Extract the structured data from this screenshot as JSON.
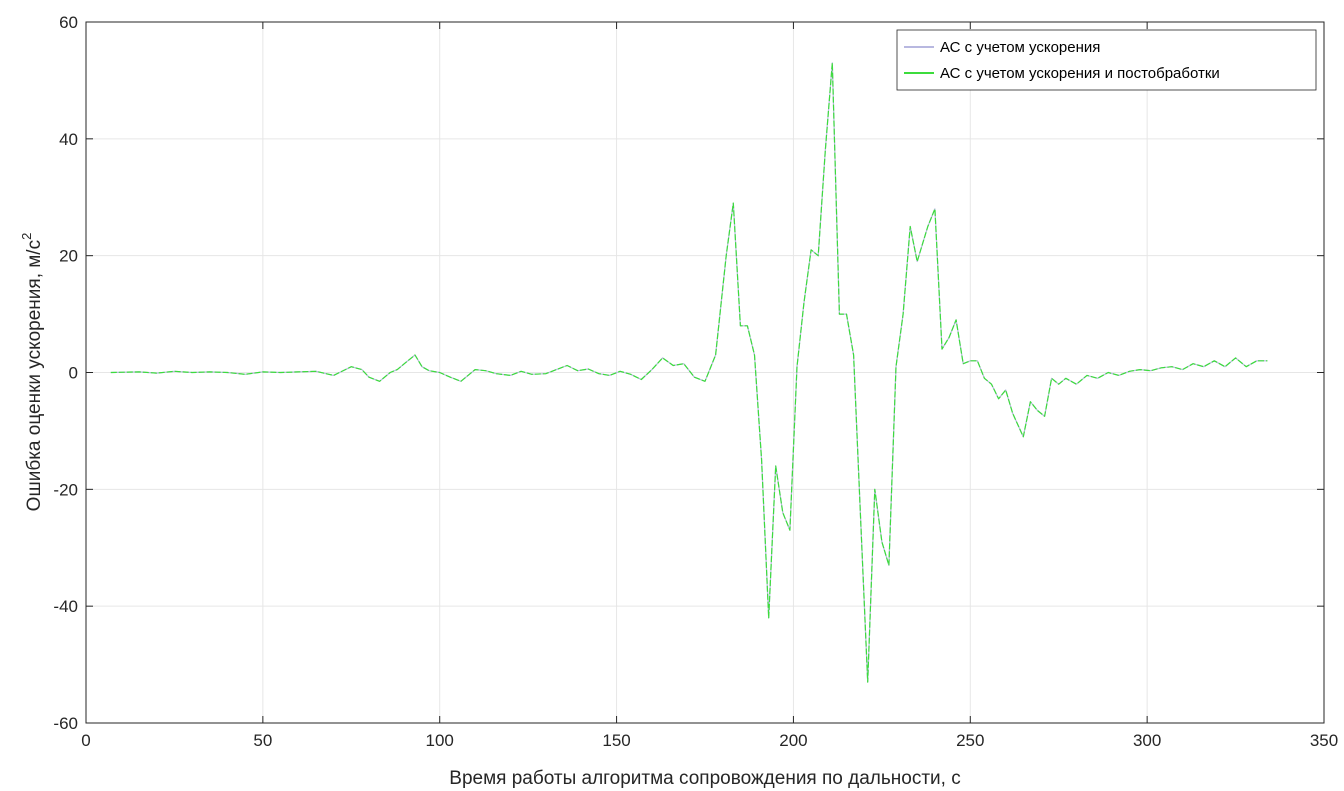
{
  "chart_data": {
    "type": "line",
    "title": "",
    "xlabel": "Время работы алгоритма сопровождения по дальности, с",
    "ylabel": "Ошибка оценки ускорения, м/с",
    "ylabel_sup": "2",
    "xlim": [
      0,
      350
    ],
    "ylim": [
      -60,
      60
    ],
    "xticks": [
      0,
      50,
      100,
      150,
      200,
      250,
      300,
      350
    ],
    "yticks": [
      -60,
      -40,
      -20,
      0,
      20,
      40,
      60
    ],
    "xtick_labels": [
      "0",
      "50",
      "100",
      "150",
      "200",
      "250",
      "300",
      "350"
    ],
    "ytick_labels": [
      "-60",
      "-40",
      "-20",
      "0",
      "20",
      "40",
      "60"
    ],
    "grid": true,
    "legend_position": "top-right",
    "colors": {
      "series1": "#b8b8e0",
      "series2": "#3cdc3c",
      "grid": "#e6e6e6",
      "axis": "#262626"
    },
    "x": [
      7,
      15,
      20,
      25,
      30,
      35,
      40,
      45,
      50,
      55,
      60,
      65,
      70,
      75,
      78,
      80,
      83,
      86,
      88,
      90,
      93,
      95,
      97,
      100,
      103,
      106,
      110,
      113,
      116,
      120,
      123,
      126,
      130,
      133,
      136,
      139,
      142,
      145,
      148,
      151,
      154,
      157,
      160,
      163,
      166,
      169,
      172,
      175,
      178,
      181,
      183,
      185,
      187,
      189,
      191,
      193,
      195,
      197,
      199,
      201,
      203,
      205,
      207,
      209,
      211,
      213,
      215,
      217,
      219,
      221,
      223,
      225,
      227,
      229,
      231,
      233,
      235,
      238,
      240,
      242,
      244,
      246,
      248,
      250,
      252,
      254,
      256,
      258,
      260,
      262,
      265,
      267,
      269,
      271,
      273,
      275,
      277,
      280,
      283,
      286,
      289,
      292,
      295,
      298,
      301,
      304,
      307,
      310,
      313,
      316,
      319,
      322,
      325,
      328,
      331,
      334
    ],
    "series": [
      {
        "name": "АС с учетом ускорения",
        "values": [
          0.0,
          0.1,
          -0.1,
          0.2,
          0.0,
          0.1,
          0.0,
          -0.3,
          0.1,
          0.0,
          0.1,
          0.2,
          -0.5,
          1.0,
          0.5,
          -0.8,
          -1.5,
          0.0,
          0.5,
          1.5,
          3.0,
          1.0,
          0.3,
          0.0,
          -0.8,
          -1.5,
          0.5,
          0.3,
          -0.2,
          -0.5,
          0.2,
          -0.3,
          -0.2,
          0.5,
          1.2,
          0.3,
          0.6,
          -0.2,
          -0.5,
          0.2,
          -0.3,
          -1.2,
          0.5,
          2.5,
          1.2,
          1.5,
          -0.8,
          -1.5,
          3.0,
          20.0,
          29.0,
          8.0,
          8.0,
          3.0,
          -15.0,
          -42.0,
          -16.0,
          -24.0,
          -27.0,
          1.0,
          12.0,
          21.0,
          20.0,
          38.0,
          53.0,
          10.0,
          10.0,
          3.0,
          -25.0,
          -53.0,
          -20.0,
          -29.0,
          -33.0,
          1.0,
          10.0,
          25.0,
          19.0,
          25.0,
          28.0,
          4.0,
          6.0,
          9.0,
          1.5,
          2.0,
          2.0,
          -1.0,
          -2.0,
          -4.5,
          -3.0,
          -7.0,
          -11.0,
          -5.0,
          -6.5,
          -7.5,
          -1.0,
          -2.0,
          -1.0,
          -2.0,
          -0.5,
          -1.0,
          0.0,
          -0.5,
          0.2,
          0.5,
          0.3,
          0.8,
          1.0,
          0.5,
          1.5,
          1.0,
          2.0,
          1.0,
          2.5,
          1.0,
          2.0,
          2.0
        ]
      },
      {
        "name": "АС с учетом ускорения и постобработки",
        "values": [
          0.0,
          0.1,
          -0.1,
          0.2,
          0.0,
          0.1,
          0.0,
          -0.3,
          0.1,
          0.0,
          0.1,
          0.2,
          -0.5,
          1.0,
          0.5,
          -0.8,
          -1.5,
          0.0,
          0.5,
          1.5,
          3.0,
          1.0,
          0.3,
          0.0,
          -0.8,
          -1.5,
          0.5,
          0.3,
          -0.2,
          -0.5,
          0.2,
          -0.3,
          -0.2,
          0.5,
          1.2,
          0.3,
          0.6,
          -0.2,
          -0.5,
          0.2,
          -0.3,
          -1.2,
          0.5,
          2.5,
          1.2,
          1.5,
          -0.8,
          -1.5,
          3.0,
          20.0,
          29.0,
          8.0,
          8.0,
          3.0,
          -15.0,
          -42.0,
          -16.0,
          -24.0,
          -27.0,
          1.0,
          12.0,
          21.0,
          20.0,
          38.0,
          53.0,
          10.0,
          10.0,
          3.0,
          -25.0,
          -53.0,
          -20.0,
          -29.0,
          -33.0,
          1.0,
          10.0,
          25.0,
          19.0,
          25.0,
          28.0,
          4.0,
          6.0,
          9.0,
          1.5,
          2.0,
          2.0,
          -1.0,
          -2.0,
          -4.5,
          -3.0,
          -7.0,
          -11.0,
          -5.0,
          -6.5,
          -7.5,
          -1.0,
          -2.0,
          -1.0,
          -2.0,
          -0.5,
          -1.0,
          0.0,
          -0.5,
          0.2,
          0.5,
          0.3,
          0.8,
          1.0,
          0.5,
          1.5,
          1.0,
          2.0,
          1.0,
          2.5,
          1.0,
          2.0,
          2.0
        ]
      }
    ]
  }
}
